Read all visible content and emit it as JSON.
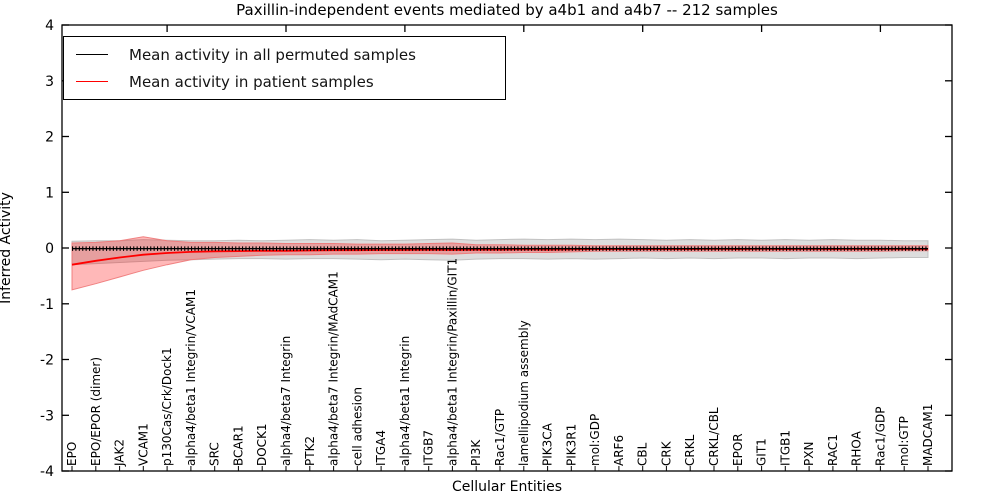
{
  "figure": {
    "title": "Paxillin-independent events mediated by a4b1 and a4b7 -- 212 samples",
    "xlabel": "Cellular Entities",
    "ylabel": "Inferred Activity"
  },
  "legend": {
    "entries": [
      {
        "label": "Mean activity in all permuted samples",
        "color": "#000000"
      },
      {
        "label": "Mean activity in patient samples",
        "color": "#ff0000"
      }
    ]
  },
  "chart_data": {
    "type": "line",
    "title": "Paxillin-independent events mediated by a4b1 and a4b7 -- 212 samples",
    "xlabel": "Cellular Entities",
    "ylabel": "Inferred Activity",
    "ylim": [
      -4,
      4
    ],
    "yticks": [
      4,
      3,
      2,
      1,
      0,
      -1,
      -2,
      -3,
      -4
    ],
    "grid": false,
    "legend_position": "upper left",
    "categories": [
      "EPO",
      "EPO/EPOR (dimer)",
      "JAK2",
      "VCAM1",
      "p130Cas/Crk/Dock1",
      "alpha4/beta1 Integrin/VCAM1",
      "SRC",
      "BCAR1",
      "DOCK1",
      "alpha4/beta7 Integrin",
      "PTK2",
      "alpha4/beta7 Integrin/MAdCAM1",
      "cell adhesion",
      "ITGA4",
      "alpha4/beta1 Integrin",
      "ITGB7",
      "alpha4/beta1 Integrin/Paxillin/GIT1",
      "PI3K",
      "Rac1/GTP",
      "lamellipodium assembly",
      "PIK3CA",
      "PIK3R1",
      "mol:GDP",
      "ARF6",
      "CBL",
      "CRK",
      "CRKL",
      "CRKL/CBL",
      "EPOR",
      "GIT1",
      "ITGB1",
      "PXN",
      "RAC1",
      "RHOA",
      "Rac1/GDP",
      "mol:GTP",
      "MADCAM1"
    ],
    "series": [
      {
        "name": "Mean activity in all permuted samples",
        "color": "#000000",
        "style": "solid-with-tick-markers",
        "values": [
          -0.01,
          -0.01,
          -0.01,
          -0.01,
          -0.01,
          -0.01,
          -0.01,
          -0.01,
          -0.01,
          -0.01,
          -0.01,
          -0.01,
          -0.01,
          -0.01,
          -0.01,
          -0.01,
          -0.01,
          -0.01,
          -0.01,
          -0.01,
          -0.01,
          -0.01,
          -0.01,
          -0.01,
          -0.01,
          -0.01,
          -0.01,
          -0.01,
          -0.01,
          -0.01,
          -0.01,
          -0.01,
          -0.01,
          -0.01,
          -0.01,
          -0.01,
          -0.01
        ]
      },
      {
        "name": "Mean activity in patient samples",
        "color": "#ff0000",
        "style": "solid",
        "values": [
          -0.3,
          -0.23,
          -0.17,
          -0.12,
          -0.09,
          -0.07,
          -0.06,
          -0.055,
          -0.05,
          -0.05,
          -0.045,
          -0.04,
          -0.04,
          -0.035,
          -0.035,
          -0.03,
          -0.035,
          -0.03,
          -0.03,
          -0.025,
          -0.03,
          -0.025,
          -0.02,
          -0.02,
          -0.02,
          -0.02,
          -0.02,
          -0.015,
          -0.02,
          -0.015,
          -0.02,
          -0.015,
          -0.02,
          -0.015,
          -0.02,
          -0.015,
          -0.02
        ]
      }
    ],
    "bands": [
      {
        "name": "permuted-samples-range",
        "fill": "#999999",
        "fill_opacity": 0.33,
        "edge": "#bdbdbd",
        "upper": [
          0.12,
          0.13,
          0.13,
          0.15,
          0.14,
          0.13,
          0.13,
          0.14,
          0.13,
          0.14,
          0.15,
          0.14,
          0.15,
          0.13,
          0.14,
          0.15,
          0.16,
          0.14,
          0.15,
          0.16,
          0.15,
          0.16,
          0.15,
          0.16,
          0.15,
          0.14,
          0.15,
          0.14,
          0.15,
          0.14,
          0.15,
          0.14,
          0.15,
          0.14,
          0.14,
          0.13,
          0.13
        ],
        "lower": [
          -0.3,
          -0.28,
          -0.26,
          -0.24,
          -0.22,
          -0.21,
          -0.2,
          -0.19,
          -0.19,
          -0.2,
          -0.19,
          -0.19,
          -0.2,
          -0.21,
          -0.2,
          -0.21,
          -0.22,
          -0.2,
          -0.19,
          -0.19,
          -0.2,
          -0.19,
          -0.2,
          -0.19,
          -0.18,
          -0.19,
          -0.18,
          -0.19,
          -0.18,
          -0.18,
          -0.19,
          -0.18,
          -0.18,
          -0.19,
          -0.18,
          -0.17,
          -0.17
        ]
      },
      {
        "name": "patient-samples-range",
        "fill": "#ff0000",
        "fill_opacity": 0.28,
        "edge": "#ee7777",
        "upper": [
          0.09,
          0.1,
          0.13,
          0.2,
          0.13,
          0.1,
          0.1,
          0.09,
          0.09,
          0.08,
          0.08,
          0.08,
          0.07,
          0.07,
          0.07,
          0.08,
          0.09,
          0.06,
          0.06,
          0.05,
          0.05,
          0.05,
          0.04,
          0.04,
          0.04,
          0.04,
          0.04,
          0.04,
          0.04,
          0.04,
          0.04,
          0.04,
          0.04,
          0.04,
          0.04,
          0.04,
          0.04
        ],
        "lower": [
          -0.75,
          -0.64,
          -0.52,
          -0.4,
          -0.3,
          -0.21,
          -0.17,
          -0.15,
          -0.13,
          -0.12,
          -0.12,
          -0.11,
          -0.11,
          -0.1,
          -0.1,
          -0.1,
          -0.11,
          -0.09,
          -0.09,
          -0.08,
          -0.08,
          -0.07,
          -0.06,
          -0.06,
          -0.06,
          -0.06,
          -0.06,
          -0.06,
          -0.06,
          -0.06,
          -0.06,
          -0.06,
          -0.06,
          -0.06,
          -0.06,
          -0.05,
          -0.05
        ]
      }
    ],
    "top_axis_tick_indices": [
      4,
      9,
      14,
      19,
      24,
      29,
      34
    ]
  }
}
